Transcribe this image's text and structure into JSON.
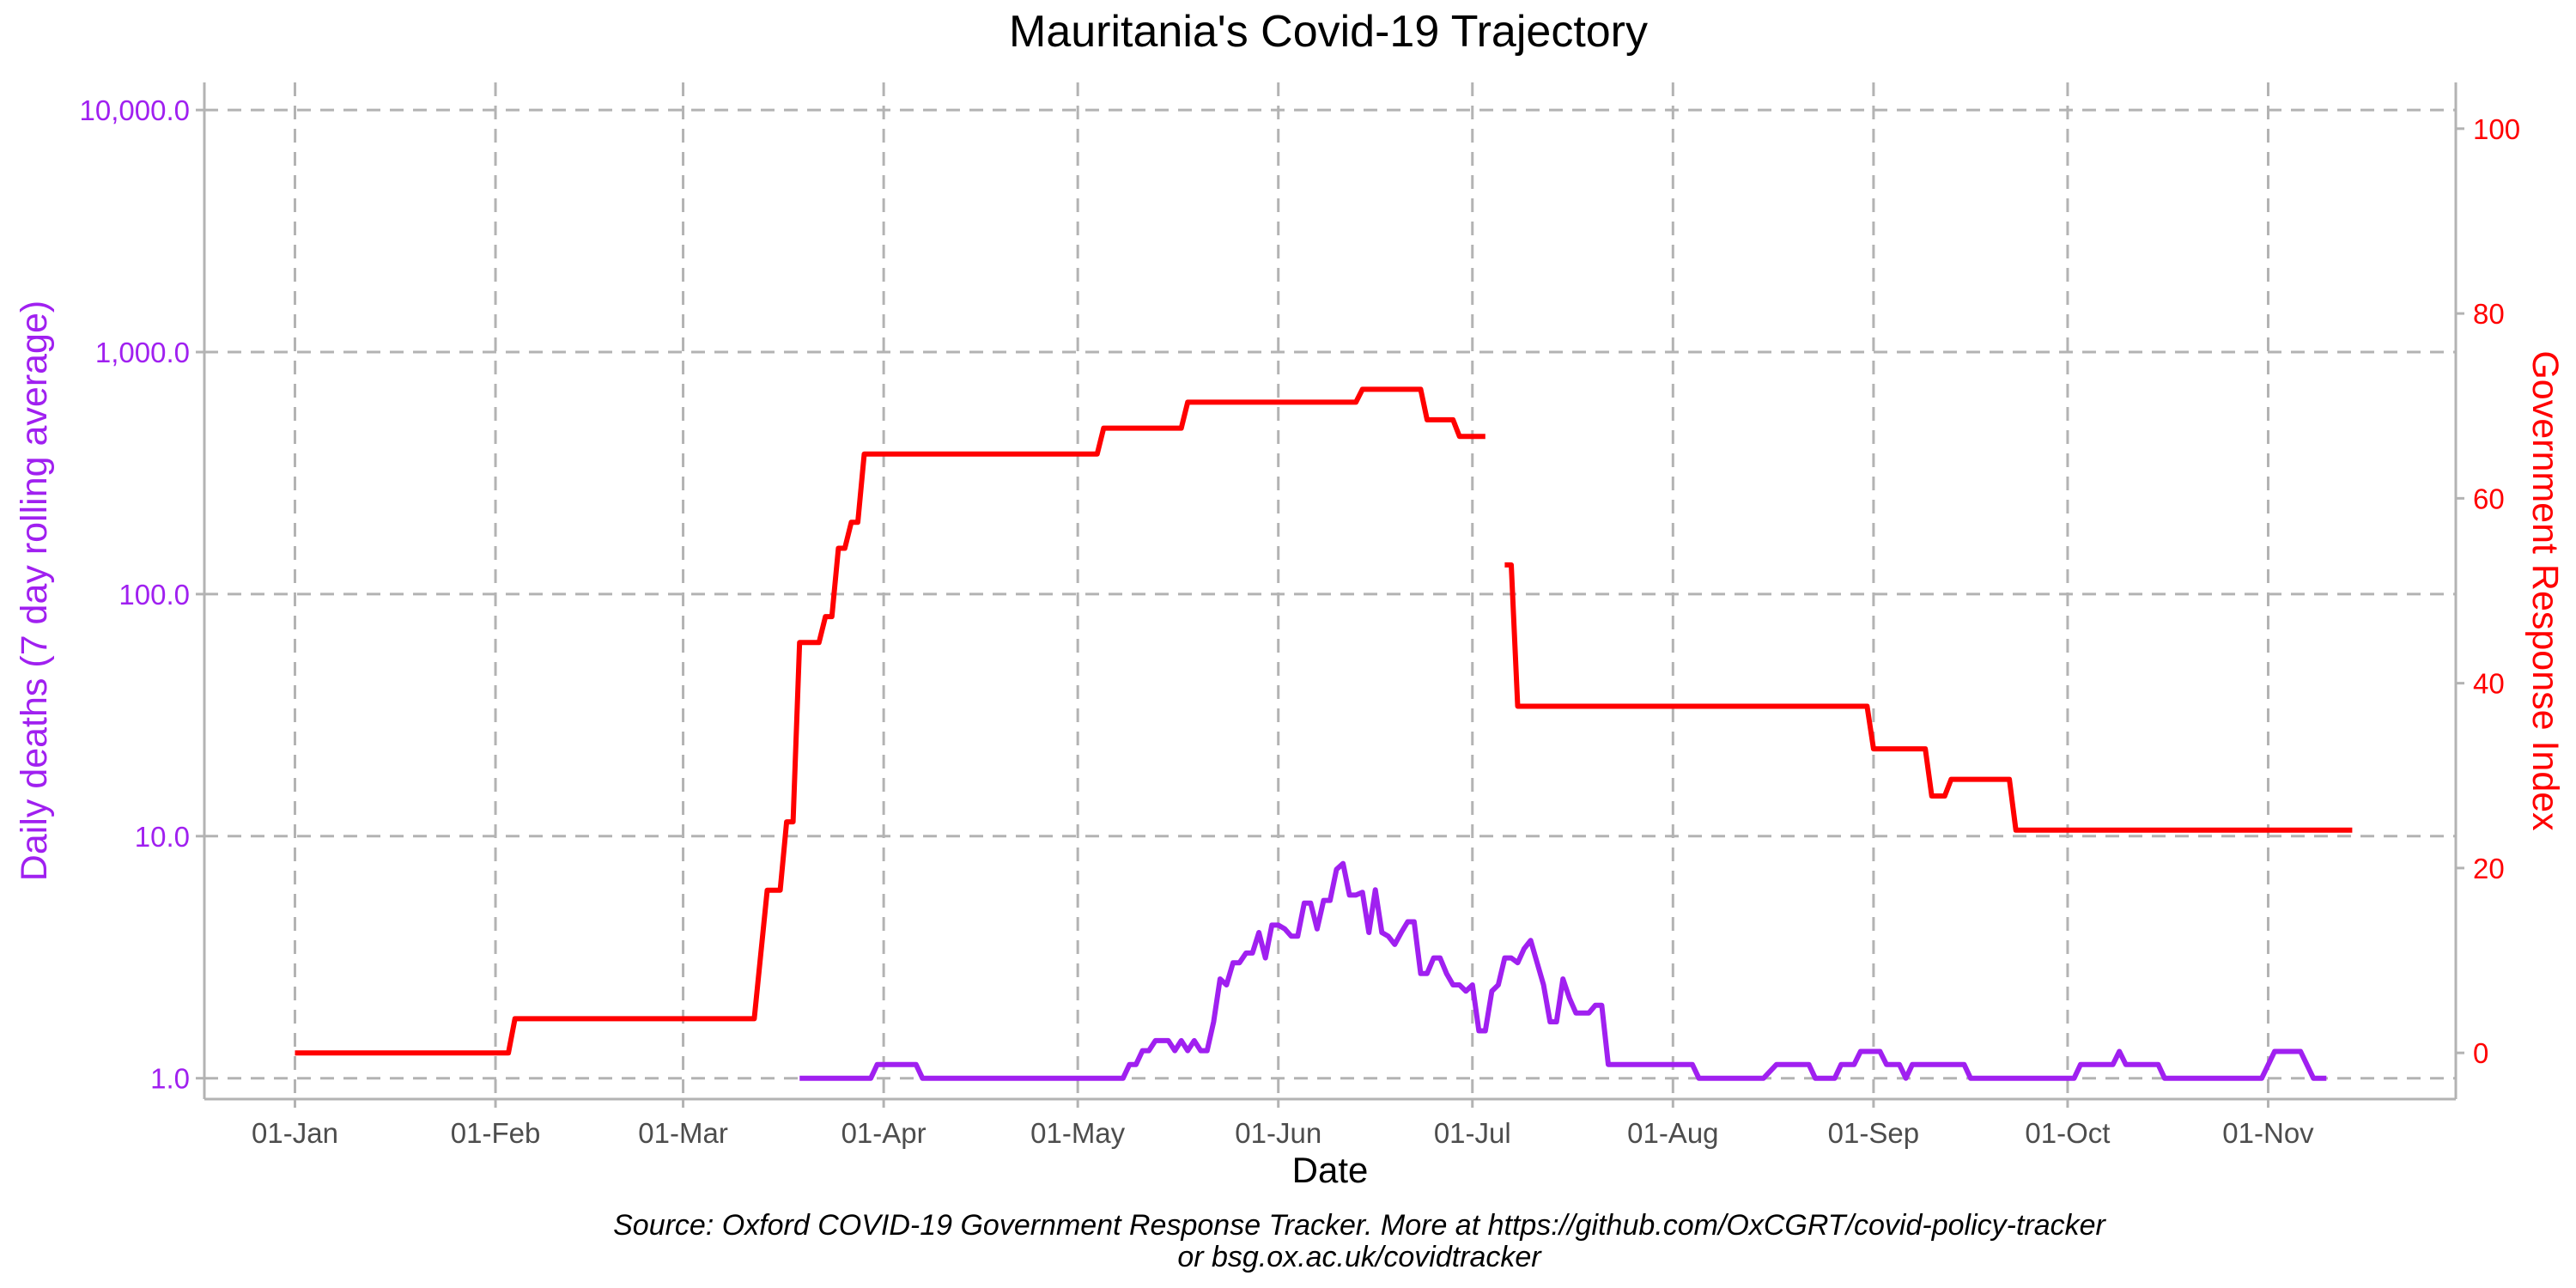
{
  "chart_data": {
    "type": "line",
    "title": "Mauritania's Covid-19 Trajectory",
    "xlabel": "Date",
    "ylabel_left": "Daily deaths (7 day rolling average)",
    "ylabel_right": "Government Response Index",
    "caption_line1": "Source: Oxford COVID-19 Government Response Tracker. More at https://github.com/OxCGRT/covid-policy-tracker",
    "caption_line2": "or bsg.ox.ac.uk/covidtracker",
    "x_axis": {
      "type": "date",
      "range": [
        "2019-12-18",
        "2020-11-30"
      ],
      "ticks": [
        {
          "date": "2020-01-01",
          "label": "01-Jan"
        },
        {
          "date": "2020-02-01",
          "label": "01-Feb"
        },
        {
          "date": "2020-03-01",
          "label": "01-Mar"
        },
        {
          "date": "2020-04-01",
          "label": "01-Apr"
        },
        {
          "date": "2020-05-01",
          "label": "01-May"
        },
        {
          "date": "2020-06-01",
          "label": "01-Jun"
        },
        {
          "date": "2020-07-01",
          "label": "01-Jul"
        },
        {
          "date": "2020-08-01",
          "label": "01-Aug"
        },
        {
          "date": "2020-09-01",
          "label": "01-Sep"
        },
        {
          "date": "2020-10-01",
          "label": "01-Oct"
        },
        {
          "date": "2020-11-01",
          "label": "01-Nov"
        }
      ]
    },
    "y_left": {
      "scale": "log10",
      "range": [
        0.82,
        13000
      ],
      "ticks": [
        {
          "value": 1,
          "label": "1.0"
        },
        {
          "value": 10,
          "label": "10.0"
        },
        {
          "value": 100,
          "label": "100.0"
        },
        {
          "value": 1000,
          "label": "1,000.0"
        },
        {
          "value": 10000,
          "label": "10,000.0"
        }
      ]
    },
    "y_right": {
      "scale": "linear",
      "range": [
        -5,
        105
      ],
      "ticks": [
        {
          "value": 0,
          "label": "0"
        },
        {
          "value": 20,
          "label": "20"
        },
        {
          "value": 40,
          "label": "40"
        },
        {
          "value": 60,
          "label": "60"
        },
        {
          "value": 80,
          "label": "80"
        },
        {
          "value": 100,
          "label": "100"
        }
      ]
    },
    "grid": true,
    "colors": {
      "deaths": "#a020f0",
      "response": "#ff0000",
      "grid": "#b3b3b3",
      "text": "#000000",
      "tick_text": "#4d4d4d"
    },
    "series": [
      {
        "key": "deaths",
        "axis": "left",
        "segments": [
          [
            [
              "2020-03-19",
              1.0
            ],
            [
              "2020-03-30",
              1.0
            ],
            [
              "2020-03-31",
              1.14
            ],
            [
              "2020-04-06",
              1.14
            ],
            [
              "2020-04-07",
              1.0
            ],
            [
              "2020-05-08",
              1.0
            ],
            [
              "2020-05-09",
              1.14
            ],
            [
              "2020-05-10",
              1.14
            ],
            [
              "2020-05-11",
              1.3
            ],
            [
              "2020-05-12",
              1.3
            ],
            [
              "2020-05-13",
              1.43
            ],
            [
              "2020-05-15",
              1.43
            ],
            [
              "2020-05-16",
              1.3
            ],
            [
              "2020-05-17",
              1.43
            ],
            [
              "2020-05-18",
              1.3
            ],
            [
              "2020-05-19",
              1.43
            ],
            [
              "2020-05-20",
              1.3
            ],
            [
              "2020-05-21",
              1.3
            ],
            [
              "2020-05-22",
              1.71
            ],
            [
              "2020-05-23",
              2.57
            ],
            [
              "2020-05-24",
              2.43
            ],
            [
              "2020-05-25",
              3.0
            ],
            [
              "2020-05-26",
              3.0
            ],
            [
              "2020-05-27",
              3.29
            ],
            [
              "2020-05-28",
              3.29
            ],
            [
              "2020-05-29",
              4.0
            ],
            [
              "2020-05-30",
              3.14
            ],
            [
              "2020-05-31",
              4.29
            ],
            [
              "2020-06-01",
              4.29
            ],
            [
              "2020-06-02",
              4.14
            ],
            [
              "2020-06-03",
              3.86
            ],
            [
              "2020-06-04",
              3.86
            ],
            [
              "2020-06-05",
              5.29
            ],
            [
              "2020-06-06",
              5.29
            ],
            [
              "2020-06-07",
              4.14
            ],
            [
              "2020-06-08",
              5.43
            ],
            [
              "2020-06-09",
              5.43
            ],
            [
              "2020-06-10",
              7.29
            ],
            [
              "2020-06-11",
              7.71
            ],
            [
              "2020-06-12",
              5.71
            ],
            [
              "2020-06-13",
              5.71
            ],
            [
              "2020-06-14",
              5.86
            ],
            [
              "2020-06-15",
              4.0
            ],
            [
              "2020-06-16",
              6.0
            ],
            [
              "2020-06-17",
              4.0
            ],
            [
              "2020-06-18",
              3.86
            ],
            [
              "2020-06-19",
              3.57
            ],
            [
              "2020-06-20",
              4.0
            ],
            [
              "2020-06-21",
              4.43
            ],
            [
              "2020-06-22",
              4.43
            ],
            [
              "2020-06-23",
              2.71
            ],
            [
              "2020-06-24",
              2.71
            ],
            [
              "2020-06-25",
              3.14
            ],
            [
              "2020-06-26",
              3.14
            ],
            [
              "2020-06-27",
              2.71
            ],
            [
              "2020-06-28",
              2.43
            ],
            [
              "2020-06-29",
              2.43
            ],
            [
              "2020-06-30",
              2.29
            ],
            [
              "2020-07-01",
              2.43
            ],
            [
              "2020-07-02",
              1.57
            ],
            [
              "2020-07-03",
              1.57
            ],
            [
              "2020-07-04",
              2.29
            ],
            [
              "2020-07-05",
              2.43
            ],
            [
              "2020-07-06",
              3.14
            ],
            [
              "2020-07-07",
              3.14
            ],
            [
              "2020-07-08",
              3.0
            ],
            [
              "2020-07-09",
              3.43
            ],
            [
              "2020-07-10",
              3.71
            ],
            [
              "2020-07-11",
              3.0
            ],
            [
              "2020-07-12",
              2.43
            ],
            [
              "2020-07-13",
              1.71
            ],
            [
              "2020-07-14",
              1.71
            ],
            [
              "2020-07-15",
              2.57
            ],
            [
              "2020-07-16",
              2.14
            ],
            [
              "2020-07-17",
              1.86
            ],
            [
              "2020-07-18",
              1.86
            ],
            [
              "2020-07-19",
              1.86
            ],
            [
              "2020-07-20",
              2.0
            ],
            [
              "2020-07-21",
              2.0
            ],
            [
              "2020-07-22",
              1.14
            ],
            [
              "2020-08-04",
              1.14
            ],
            [
              "2020-08-05",
              1.0
            ],
            [
              "2020-08-15",
              1.0
            ],
            [
              "2020-08-17",
              1.14
            ],
            [
              "2020-08-22",
              1.14
            ],
            [
              "2020-08-23",
              1.0
            ],
            [
              "2020-08-26",
              1.0
            ],
            [
              "2020-08-27",
              1.14
            ],
            [
              "2020-08-29",
              1.14
            ],
            [
              "2020-08-30",
              1.29
            ],
            [
              "2020-09-02",
              1.29
            ],
            [
              "2020-09-03",
              1.14
            ],
            [
              "2020-09-05",
              1.14
            ],
            [
              "2020-09-06",
              1.0
            ],
            [
              "2020-09-07",
              1.14
            ],
            [
              "2020-09-15",
              1.14
            ],
            [
              "2020-09-16",
              1.0
            ],
            [
              "2020-10-02",
              1.0
            ],
            [
              "2020-10-03",
              1.14
            ],
            [
              "2020-10-08",
              1.14
            ],
            [
              "2020-10-09",
              1.29
            ],
            [
              "2020-10-10",
              1.14
            ],
            [
              "2020-10-15",
              1.14
            ],
            [
              "2020-10-16",
              1.0
            ],
            [
              "2020-10-31",
              1.0
            ],
            [
              "2020-11-02",
              1.29
            ],
            [
              "2020-11-06",
              1.29
            ],
            [
              "2020-11-08",
              1.0
            ],
            [
              "2020-11-10",
              1.0
            ]
          ]
        ]
      },
      {
        "key": "response",
        "axis": "right",
        "segments": [
          [
            [
              "2020-01-01",
              0
            ],
            [
              "2020-02-03",
              0
            ],
            [
              "2020-02-04",
              3.7
            ],
            [
              "2020-03-12",
              3.7
            ],
            [
              "2020-03-14",
              17.6
            ],
            [
              "2020-03-16",
              17.6
            ],
            [
              "2020-03-17",
              25
            ],
            [
              "2020-03-18",
              25
            ],
            [
              "2020-03-19",
              44.4
            ],
            [
              "2020-03-22",
              44.4
            ],
            [
              "2020-03-23",
              47.2
            ],
            [
              "2020-03-24",
              47.2
            ],
            [
              "2020-03-25",
              54.6
            ],
            [
              "2020-03-26",
              54.6
            ],
            [
              "2020-03-27",
              57.4
            ],
            [
              "2020-03-28",
              57.4
            ],
            [
              "2020-03-29",
              64.8
            ],
            [
              "2020-05-04",
              64.8
            ],
            [
              "2020-05-05",
              67.6
            ],
            [
              "2020-05-17",
              67.6
            ],
            [
              "2020-05-18",
              70.4
            ],
            [
              "2020-06-13",
              70.4
            ],
            [
              "2020-06-14",
              71.8
            ],
            [
              "2020-06-23",
              71.8
            ],
            [
              "2020-06-24",
              68.5
            ],
            [
              "2020-06-28",
              68.5
            ],
            [
              "2020-06-29",
              66.7
            ],
            [
              "2020-07-03",
              66.7
            ]
          ],
          [
            [
              "2020-07-06",
              52.8
            ],
            [
              "2020-07-07",
              52.8
            ],
            [
              "2020-07-08",
              37.5
            ],
            [
              "2020-08-31",
              37.5
            ],
            [
              "2020-09-01",
              32.9
            ],
            [
              "2020-09-09",
              32.9
            ],
            [
              "2020-09-10",
              27.8
            ],
            [
              "2020-09-12",
              27.8
            ],
            [
              "2020-09-13",
              29.6
            ],
            [
              "2020-09-22",
              29.6
            ],
            [
              "2020-09-23",
              24.1
            ],
            [
              "2020-11-14",
              24.1
            ]
          ]
        ]
      }
    ]
  }
}
